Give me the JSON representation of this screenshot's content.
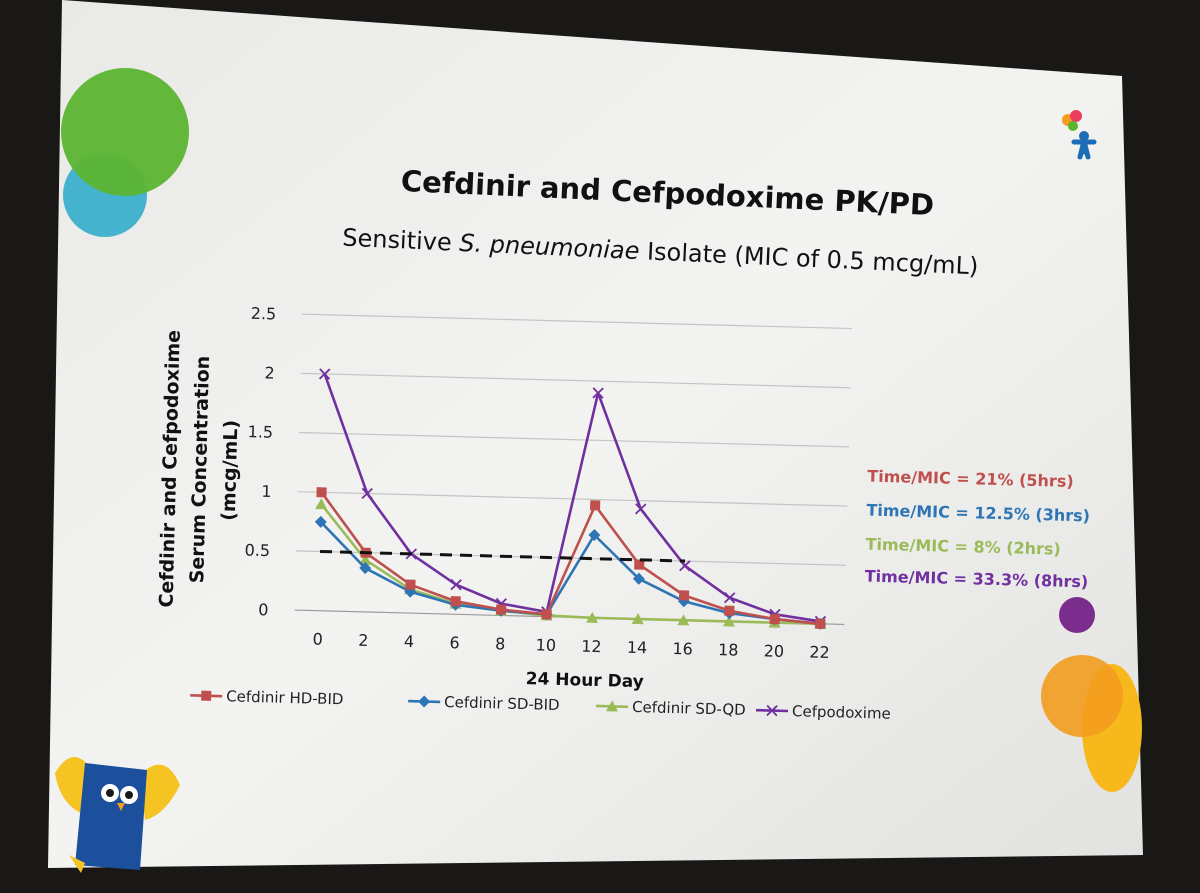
{
  "slide": {
    "title": "Cefdinir and Cefpodoxime PK/PD",
    "subtitle_prefix": "Sensitive ",
    "subtitle_italic": "S. pneumoniae",
    "subtitle_suffix": " Isolate (MIC of 0.5 mcg/mL)"
  },
  "chart_data": {
    "type": "line",
    "title": "",
    "xlabel": "24 Hour Day",
    "ylabel_line1": "Cefdinir and Cefpodoxime",
    "ylabel_line2": "Serum Concentration",
    "ylabel_line3": "(mcg/mL)",
    "x": [
      0,
      2,
      4,
      6,
      8,
      10,
      12,
      14,
      16,
      18,
      20,
      22
    ],
    "x_tick_labels": [
      "0",
      "2",
      "4",
      "6",
      "8",
      "10",
      "12",
      "14",
      "16",
      "18",
      "20",
      "22"
    ],
    "y_tick_labels": [
      "0",
      "0.5",
      "1",
      "1.5",
      "2",
      "2.5"
    ],
    "ylim": [
      0,
      2.5
    ],
    "grid": true,
    "legend_position": "bottom",
    "mic_line": {
      "value": 0.5,
      "x_start": 0,
      "x_end": 16,
      "style": "dashed"
    },
    "series": [
      {
        "name": "Cefdinir HD-BID",
        "color": "#c0504d",
        "marker": "square",
        "values": [
          1.0,
          0.5,
          0.24,
          0.11,
          0.05,
          0.02,
          0.95,
          0.46,
          0.21,
          0.09,
          0.03,
          0.0
        ]
      },
      {
        "name": "Cefdinir SD-BID",
        "color": "#2e75b6",
        "marker": "diamond",
        "values": [
          0.75,
          0.37,
          0.18,
          0.08,
          0.04,
          0.02,
          0.7,
          0.34,
          0.16,
          0.07,
          0.03,
          0.0
        ]
      },
      {
        "name": "Cefdinir SD-QD",
        "color": "#9bbb59",
        "marker": "triangle",
        "values": [
          0.9,
          0.44,
          0.2,
          0.09,
          0.04,
          0.01,
          0.0,
          0.0,
          0.0,
          0.0,
          0.0,
          0.0
        ]
      },
      {
        "name": "Cefpodoxime",
        "color": "#7030a0",
        "marker": "x",
        "values": [
          2.0,
          1.0,
          0.5,
          0.25,
          0.1,
          0.04,
          1.9,
          0.93,
          0.46,
          0.2,
          0.07,
          0.02
        ]
      }
    ],
    "annotations": [
      {
        "text": "Time/MIC = 21% (5hrs)",
        "color": "#c0504d"
      },
      {
        "text": "Time/MIC = 12.5% (3hrs)",
        "color": "#2e75b6"
      },
      {
        "text": "Time/MIC = 8% (2hrs)",
        "color": "#9bbb59"
      },
      {
        "text": "Time/MIC = 33.3% (8hrs)",
        "color": "#7030a0"
      }
    ]
  },
  "decor": {
    "colors": {
      "green": "#5cb531",
      "teal": "#29a9c9",
      "purple": "#7b2d8e",
      "orange": "#f39c1f",
      "yellow": "#f7b81b",
      "owl_blue": "#1c4f9c",
      "owl_yellow": "#f5c422",
      "figure_blue": "#1c6db5"
    },
    "icons": [
      "circle-cluster-top-left",
      "child-balloons-logo",
      "owl-mascot",
      "circle-cluster-bottom-right"
    ]
  }
}
